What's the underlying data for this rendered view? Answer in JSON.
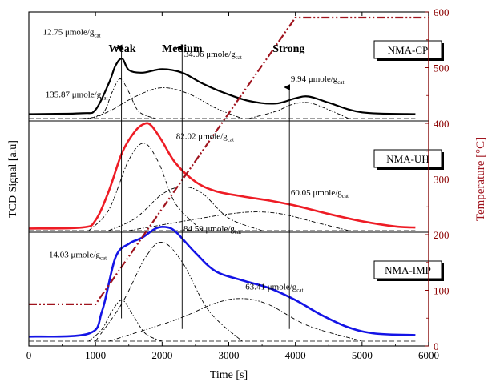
{
  "chart_data": {
    "type": "line",
    "xlabel": "Time [s]",
    "ylabel": "TCD Signal [a.u]",
    "y2label": "Temperature [°C]",
    "xlim": [
      0,
      6000
    ],
    "xticks": [
      0,
      1000,
      2000,
      3000,
      4000,
      5000,
      6000
    ],
    "y2lim": [
      0,
      600
    ],
    "y2ticks": [
      0,
      100,
      200,
      300,
      400,
      500,
      600
    ],
    "site_labels": [
      "Weak",
      "Medium",
      "Strong"
    ],
    "site_label_x": [
      1400,
      2300,
      3900
    ],
    "colors": {
      "NMA-CP": "#000000",
      "NMA-UH": "#ee1c25",
      "NMA-IMP": "#1414e6",
      "temperature": "#a0141e"
    },
    "temperature_profile": {
      "x": [
        0,
        1000,
        4000,
        6000
      ],
      "y": [
        75,
        75,
        590,
        590
      ]
    },
    "panels": [
      {
        "name": "NMA-CP",
        "total_peak": {
          "x": [
            0,
            800,
            1000,
            1200,
            1300,
            1400,
            1500,
            1700,
            2000,
            2300,
            2600,
            2900,
            3300,
            3700,
            4000,
            4200,
            4500,
            5000,
            5800
          ],
          "y": [
            0.05,
            0.06,
            0.1,
            0.4,
            0.6,
            0.68,
            0.55,
            0.52,
            0.56,
            0.52,
            0.4,
            0.3,
            0.2,
            0.17,
            0.23,
            0.25,
            0.18,
            0.07,
            0.05
          ]
        },
        "components": [
          {
            "x": [
              800,
              1100,
              1250,
              1370,
              1500,
              1650,
              1900
            ],
            "y": [
              0.0,
              0.05,
              0.3,
              0.45,
              0.3,
              0.08,
              0.0
            ]
          },
          {
            "x": [
              900,
              1200,
              1600,
              2000,
              2400,
              2800,
              3200
            ],
            "y": [
              0.0,
              0.08,
              0.25,
              0.35,
              0.28,
              0.12,
              0.0
            ]
          },
          {
            "x": [
              3300,
              3700,
              3950,
              4200,
              4500,
              4800
            ],
            "y": [
              0.0,
              0.08,
              0.16,
              0.18,
              0.1,
              0.0
            ]
          }
        ],
        "annotations": [
          {
            "text": "12.75 μmole/g",
            "sub": "cat",
            "x": 210,
            "y": 0.95
          },
          {
            "text": "34.06 μmole/g",
            "sub": "cat",
            "x": 2330,
            "y": 0.7
          },
          {
            "text": "9.94 μmole/g",
            "sub": "cat",
            "x": 3930,
            "y": 0.42
          }
        ]
      },
      {
        "name": "NMA-UH",
        "total_peak": {
          "x": [
            0,
            800,
            1000,
            1200,
            1400,
            1600,
            1750,
            1850,
            2000,
            2200,
            2500,
            2800,
            3200,
            3600,
            4000,
            4500,
            5000,
            5500,
            5800
          ],
          "y": [
            0.02,
            0.03,
            0.1,
            0.38,
            0.75,
            0.96,
            1.03,
            1.0,
            0.86,
            0.65,
            0.47,
            0.38,
            0.33,
            0.29,
            0.24,
            0.16,
            0.09,
            0.04,
            0.03
          ]
        },
        "components": [
          {
            "x": [
              900,
              1200,
              1500,
              1730,
              1950,
              2200,
              2600
            ],
            "y": [
              0.0,
              0.2,
              0.68,
              0.84,
              0.65,
              0.26,
              0.0
            ]
          },
          {
            "x": [
              1200,
              1600,
              2000,
              2300,
              2600,
              3000,
              3500
            ],
            "y": [
              0.0,
              0.12,
              0.35,
              0.42,
              0.36,
              0.12,
              0.0
            ]
          },
          {
            "x": [
              1500,
              2500,
              3000,
              3400,
              3800,
              4300,
              4800
            ],
            "y": [
              0.0,
              0.11,
              0.16,
              0.18,
              0.16,
              0.08,
              0.0
            ]
          }
        ],
        "annotations": [
          {
            "text": "135.87 μmole/g",
            "sub": "cat",
            "x": 250,
            "y": 1.28
          },
          {
            "text": "82.02 μmole/g",
            "sub": "cat",
            "x": 2210,
            "y": 0.88
          },
          {
            "text": "60.05 μmole/g",
            "sub": "cat",
            "x": 3930,
            "y": 0.34
          }
        ]
      },
      {
        "name": "NMA-IMP",
        "total_peak": {
          "x": [
            0,
            900,
            1100,
            1300,
            1500,
            1700,
            1900,
            2050,
            2200,
            2500,
            2800,
            3200,
            3600,
            4000,
            4400,
            4800,
            5200,
            5800
          ],
          "y": [
            0.03,
            0.05,
            0.2,
            0.55,
            0.64,
            0.68,
            0.74,
            0.75,
            0.72,
            0.58,
            0.46,
            0.4,
            0.35,
            0.27,
            0.17,
            0.09,
            0.05,
            0.04
          ]
        },
        "components": [
          {
            "x": [
              900,
              1100,
              1250,
              1400,
              1550,
              1750,
              2000
            ],
            "y": [
              0.0,
              0.08,
              0.2,
              0.27,
              0.18,
              0.05,
              0.0
            ]
          },
          {
            "x": [
              1000,
              1400,
              1750,
              2000,
              2300,
              2700,
              3200
            ],
            "y": [
              0.0,
              0.25,
              0.55,
              0.65,
              0.52,
              0.2,
              0.0
            ]
          },
          {
            "x": [
              1200,
              2200,
              2800,
              3200,
              3600,
              4200,
              5000
            ],
            "y": [
              0.0,
              0.14,
              0.25,
              0.28,
              0.24,
              0.1,
              0.0
            ]
          }
        ],
        "annotations": [
          {
            "text": "14.03 μmole/g",
            "sub": "cat",
            "x": 300,
            "y": 0.55
          },
          {
            "text": "84.59 μmole/g",
            "sub": "cat",
            "x": 2320,
            "y": 0.72
          },
          {
            "text": "63.41 μmole/g",
            "sub": "cat",
            "x": 3250,
            "y": 0.34
          }
        ]
      }
    ],
    "arrows": [
      {
        "x": 1390,
        "from_panel": 2,
        "y_from": 0.15,
        "to_panel": 0,
        "y_to": 0.95
      },
      {
        "x": 2300,
        "from_panel": 2,
        "y_from": 0.08,
        "to_panel": 0,
        "y_to": 0.95
      },
      {
        "x": 3910,
        "from_panel": 2,
        "y_from": 0.08,
        "to_panel": 0,
        "y_to": 0.5
      }
    ]
  }
}
